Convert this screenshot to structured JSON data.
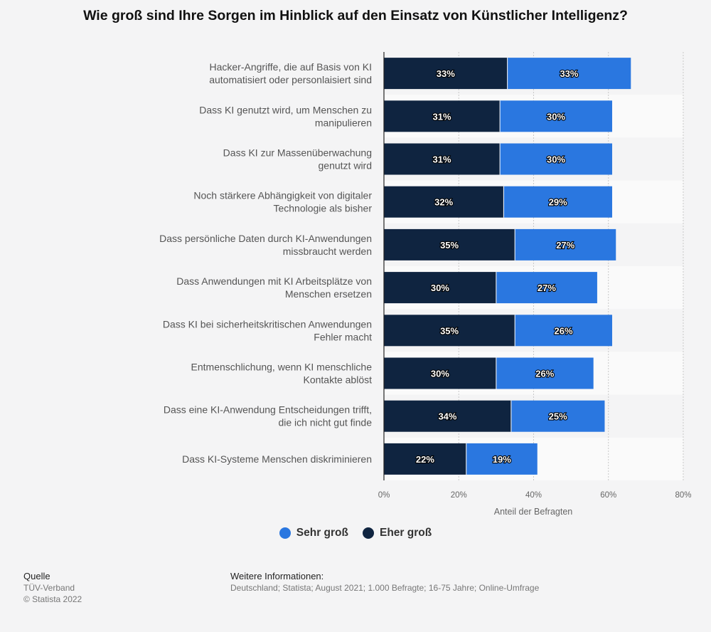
{
  "title": "Wie groß sind Ihre Sorgen im Hinblick auf den Einsatz von Künstlicher Intelligenz?",
  "colors": {
    "sehr_gross": "#2a77e0",
    "eher_gross": "#0f2440",
    "background": "#f4f4f5",
    "band": "#fafafa"
  },
  "legend": {
    "sehr_gross": "Sehr groß",
    "eher_gross": "Eher groß"
  },
  "footer": {
    "source_head": "Quelle",
    "source": "TÜV-Verband",
    "copyright": "© Statista 2022",
    "info_head": "Weitere Informationen:",
    "info": "Deutschland; Statista; August 2021; 1.000 Befragte; 16-75 Jahre; Online-Umfrage"
  },
  "chart_data": {
    "type": "bar",
    "orientation": "horizontal",
    "stacked": true,
    "categories": [
      [
        "Hacker-Angriffe, die auf Basis von KI",
        "automatisiert oder personlaisiert sind"
      ],
      [
        "Dass KI genutzt wird, um Menschen zu",
        "manipulieren"
      ],
      [
        "Dass KI zur Massenüberwachung",
        "genutzt wird"
      ],
      [
        "Noch stärkere Abhängigkeit von digitaler",
        "Technologie als bisher"
      ],
      [
        "Dass persönliche Daten durch KI-Anwendungen",
        "missbraucht werden"
      ],
      [
        "Dass Anwendungen mit KI Arbeitsplätze von",
        "Menschen ersetzen"
      ],
      [
        "Dass KI bei sicherheitskritischen Anwendungen",
        "Fehler macht"
      ],
      [
        "Entmenschlichung, wenn KI menschliche",
        "Kontakte ablöst"
      ],
      [
        "Dass eine KI-Anwendung Entscheidungen trifft,",
        "die ich nicht gut finde"
      ],
      [
        "Dass KI-Systeme Menschen diskriminieren"
      ]
    ],
    "series": [
      {
        "name": "Eher groß",
        "values": [
          33,
          31,
          31,
          32,
          35,
          30,
          35,
          30,
          34,
          22
        ]
      },
      {
        "name": "Sehr groß",
        "values": [
          33,
          30,
          30,
          29,
          27,
          27,
          26,
          26,
          25,
          19
        ]
      }
    ],
    "xlim": [
      0,
      80
    ],
    "xticks": [
      "0%",
      "20%",
      "40%",
      "60%",
      "80%"
    ],
    "xlabel": "Anteil der Befragten",
    "grid": true,
    "legend_position": "bottom"
  }
}
